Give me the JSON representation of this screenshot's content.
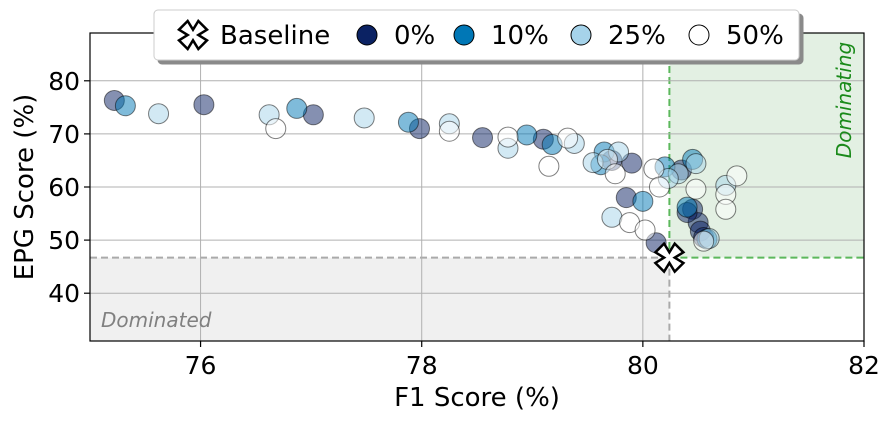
{
  "chart_data": {
    "type": "scatter",
    "xlabel": "F1 Score (%)",
    "ylabel": "EPG Score (%)",
    "xlim": [
      75,
      82
    ],
    "ylim": [
      31,
      89
    ],
    "xticks": [
      76,
      78,
      80,
      82
    ],
    "yticks": [
      40,
      50,
      60,
      70,
      80
    ],
    "grid": true,
    "legend_position": "top-center",
    "region_labels": {
      "dominated": "Dominated",
      "dominating": "Dominating"
    },
    "colors": {
      "dominated_fill": "#f0f0f0",
      "dominated_line": "#aaaaaa",
      "dominated_text": "#808080",
      "dominating_fill": "#e3f0e3",
      "dominating_line": "#5cb85c",
      "dominating_text": "#1a8a1a"
    },
    "baseline": {
      "name": "Baseline",
      "x": 80.24,
      "y": 46.7
    },
    "series": [
      {
        "name": "0%",
        "color": "#0b2263",
        "points": [
          [
            75.22,
            76.3
          ],
          [
            76.03,
            75.5
          ],
          [
            77.02,
            73.6
          ],
          [
            77.98,
            71.0
          ],
          [
            78.55,
            69.3
          ],
          [
            79.1,
            69.0
          ],
          [
            79.72,
            65.0
          ],
          [
            80.35,
            63.2
          ],
          [
            80.45,
            55.8
          ],
          [
            80.5,
            53.3
          ],
          [
            80.52,
            51.7
          ],
          [
            80.55,
            50.5
          ],
          [
            80.12,
            49.5
          ],
          [
            79.85,
            58.0
          ],
          [
            80.4,
            55.2
          ],
          [
            79.9,
            64.5
          ]
        ]
      },
      {
        "name": "10%",
        "color": "#0077b6",
        "points": [
          [
            75.32,
            75.3
          ],
          [
            76.87,
            74.8
          ],
          [
            77.88,
            72.2
          ],
          [
            78.95,
            69.8
          ],
          [
            79.18,
            68.0
          ],
          [
            79.65,
            66.6
          ],
          [
            80.2,
            63.8
          ],
          [
            80.45,
            65.2
          ],
          [
            80.4,
            56.2
          ],
          [
            80.58,
            50.2
          ],
          [
            80.0,
            57.3
          ],
          [
            79.62,
            64.2
          ]
        ]
      },
      {
        "name": "25%",
        "color": "#a6d3ea",
        "points": [
          [
            75.62,
            73.8
          ],
          [
            76.62,
            73.6
          ],
          [
            77.48,
            73.0
          ],
          [
            78.25,
            71.9
          ],
          [
            78.78,
            67.3
          ],
          [
            79.38,
            68.2
          ],
          [
            79.78,
            66.6
          ],
          [
            80.32,
            62.5
          ],
          [
            80.48,
            64.4
          ],
          [
            80.75,
            60.3
          ],
          [
            79.72,
            54.3
          ],
          [
            80.6,
            50.3
          ],
          [
            80.23,
            61.6
          ],
          [
            79.55,
            64.6
          ]
        ]
      },
      {
        "name": "50%",
        "color": "#ffffff",
        "points": [
          [
            76.68,
            71.0
          ],
          [
            78.25,
            70.5
          ],
          [
            78.78,
            69.4
          ],
          [
            79.32,
            69.2
          ],
          [
            79.68,
            65.2
          ],
          [
            80.1,
            63.4
          ],
          [
            80.15,
            60.0
          ],
          [
            80.48,
            59.6
          ],
          [
            80.75,
            58.6
          ],
          [
            80.85,
            62.1
          ],
          [
            79.15,
            63.9
          ],
          [
            79.88,
            53.3
          ],
          [
            80.02,
            51.9
          ],
          [
            80.75,
            55.8
          ],
          [
            80.55,
            49.8
          ],
          [
            79.75,
            62.5
          ]
        ]
      }
    ]
  }
}
